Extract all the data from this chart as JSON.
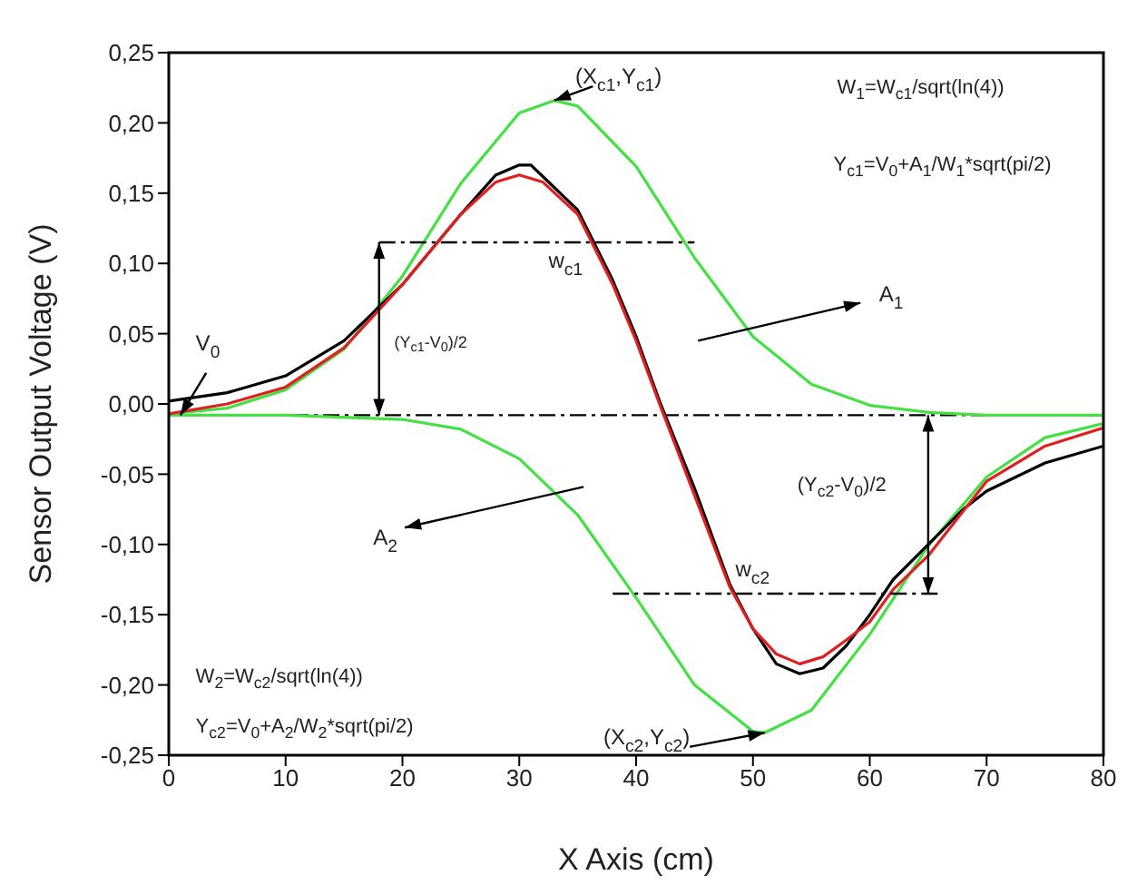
{
  "chart_data": {
    "type": "line",
    "xlabel": "X Axis (cm)",
    "ylabel": "Sensor Output Voltage (V)",
    "xlim": [
      0,
      80
    ],
    "xticks": [
      0,
      10,
      20,
      30,
      40,
      50,
      60,
      70,
      80
    ],
    "ylim": [
      -0.25,
      0.25
    ],
    "yticks": [
      {
        "value": -0.25,
        "label": "-0,25"
      },
      {
        "value": -0.2,
        "label": "-0,20"
      },
      {
        "value": -0.15,
        "label": "-0,15"
      },
      {
        "value": -0.1,
        "label": "-0,10"
      },
      {
        "value": -0.05,
        "label": "-0,05"
      },
      {
        "value": 0,
        "label": "0,00"
      },
      {
        "value": 0.05,
        "label": "0,05"
      },
      {
        "value": 0.1,
        "label": "0,10"
      },
      {
        "value": 0.15,
        "label": "0,15"
      },
      {
        "value": 0.2,
        "label": "0,20"
      },
      {
        "value": 0.25,
        "label": "0,25"
      }
    ],
    "series": [
      {
        "color": "#44e044",
        "x": [
          0,
          5,
          10,
          15,
          20,
          25,
          30,
          33,
          35,
          40,
          45,
          50,
          55,
          60,
          65,
          70,
          80
        ],
        "values": [
          -0.007,
          -0.003,
          0.01,
          0.039,
          0.091,
          0.157,
          0.207,
          0.216,
          0.212,
          0.169,
          0.104,
          0.048,
          0.014,
          -0.001,
          -0.006,
          -0.008,
          -0.008
        ]
      },
      {
        "color": "#44e044",
        "x": [
          0,
          10,
          20,
          25,
          30,
          35,
          40,
          45,
          50,
          51,
          55,
          60,
          65,
          70,
          75,
          80
        ],
        "values": [
          -0.008,
          -0.008,
          -0.011,
          -0.018,
          -0.039,
          -0.079,
          -0.138,
          -0.2,
          -0.233,
          -0.234,
          -0.218,
          -0.164,
          -0.101,
          -0.052,
          -0.024,
          -0.014
        ]
      },
      {
        "color": "#000000",
        "x": [
          0,
          5,
          10,
          15,
          20,
          25,
          28,
          30,
          31,
          32,
          35,
          38,
          40,
          42,
          45,
          48,
          50,
          52,
          54,
          56,
          58,
          60,
          62,
          65,
          68,
          70,
          75,
          80
        ],
        "values": [
          0.002,
          0.008,
          0.02,
          0.045,
          0.085,
          0.135,
          0.163,
          0.17,
          0.17,
          0.162,
          0.138,
          0.088,
          0.048,
          0.002,
          -0.06,
          -0.128,
          -0.16,
          -0.185,
          -0.192,
          -0.188,
          -0.172,
          -0.15,
          -0.125,
          -0.1,
          -0.075,
          -0.062,
          -0.042,
          -0.03
        ]
      },
      {
        "color": "#e02020",
        "x": [
          0,
          5,
          10,
          15,
          20,
          25,
          28,
          30,
          32,
          35,
          38,
          40,
          42,
          45,
          48,
          50,
          52,
          54,
          56,
          58,
          60,
          62,
          65,
          70,
          75,
          80
        ],
        "values": [
          -0.007,
          0,
          0.012,
          0.04,
          0.085,
          0.135,
          0.158,
          0.163,
          0.158,
          0.135,
          0.085,
          0.045,
          0,
          -0.065,
          -0.13,
          -0.16,
          -0.178,
          -0.185,
          -0.18,
          -0.168,
          -0.155,
          -0.132,
          -0.108,
          -0.055,
          -0.03,
          -0.017
        ]
      },
      {
        "color": "#000000",
        "line_style": "dashed",
        "x": [
          18,
          45
        ],
        "values": [
          0.115,
          0.115
        ]
      },
      {
        "color": "#000000",
        "line_style": "dashed",
        "x": [
          38,
          66
        ],
        "values": [
          -0.135,
          -0.135
        ]
      }
    ],
    "ref_lines": [
      {
        "axis": "y",
        "value": -0.008,
        "color": "#000000",
        "line_style": "dashed"
      }
    ],
    "annotations": [
      "W$_{1}$=W$_{c1}$/sqrt(ln(4))",
      "Y$_{c1}$=V$_{0}$+A$_{1}$/W$_{1}$*sqrt(pi/2)",
      "W$_{2}$=W$_{c2}$/sqrt(ln(4))",
      "Y$_{c2}$=V$_{0}$+A$_{2}$/W$_{2}$*sqrt(pi/2)",
      {
        "text": "(X$_{c1}$,Y$_{c1}$)",
        "x": 33,
        "y": 0.216
      },
      {
        "text": "(X$_{c2}$,Y$_{c2}$)",
        "x": 51,
        "y": -0.234
      },
      {
        "text": "V$_{0}$",
        "x": 1,
        "y": -0.008
      },
      "w$_{c1}$",
      "w$_{c2}$",
      "(Y$_{c1}$-V$_{0}$)/2",
      "(Y$_{c2}$-V$_{0}$)/2",
      "A$_{1}$",
      "A$_{2}$"
    ]
  }
}
